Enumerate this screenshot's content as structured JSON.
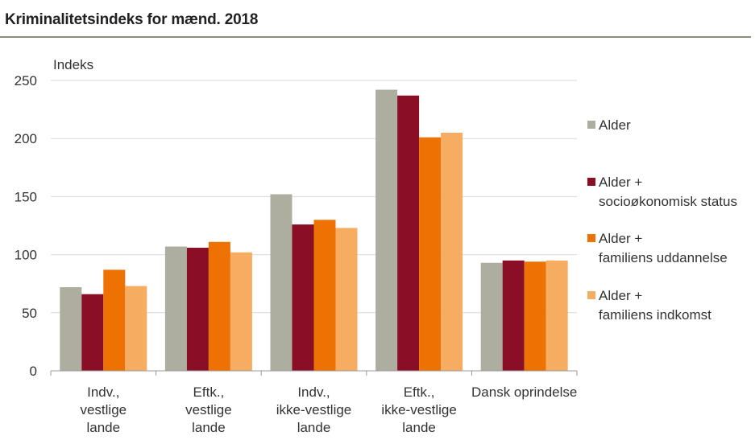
{
  "page": {
    "title": "Kriminalitetsindeks for mænd. 2018"
  },
  "chart_data": {
    "type": "bar",
    "title": "Kriminalitetsindeks for mænd. 2018",
    "ylabel": "Indeks",
    "xlabel": "",
    "ylim": [
      0,
      250
    ],
    "yticks": [
      0,
      50,
      100,
      150,
      200,
      250
    ],
    "grid": true,
    "legend_position": "right",
    "categories": [
      [
        "Indv.,",
        "vestlige",
        "lande"
      ],
      [
        "Eftk.,",
        "vestlige",
        "lande"
      ],
      [
        "Indv.,",
        "ikke-vestlige",
        "lande"
      ],
      [
        "Eftk.,",
        "ikke-vestlige",
        "lande"
      ],
      [
        "Dansk oprindelse"
      ]
    ],
    "series": [
      {
        "name": [
          "Alder"
        ],
        "color": "#adada0",
        "values": [
          72,
          107,
          152,
          242,
          93
        ]
      },
      {
        "name": [
          "Alder +",
          "socioøkonomisk status"
        ],
        "color": "#8b0e27",
        "values": [
          66,
          106,
          126,
          237,
          95
        ]
      },
      {
        "name": [
          "Alder +",
          "familiens uddannelse"
        ],
        "color": "#ee7203",
        "values": [
          87,
          111,
          130,
          201,
          94
        ]
      },
      {
        "name": [
          "Alder +",
          "familiens indkomst"
        ],
        "color": "#f6ad62",
        "values": [
          73,
          102,
          123,
          205,
          95
        ]
      }
    ]
  }
}
